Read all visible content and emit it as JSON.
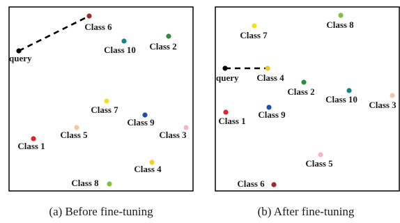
{
  "chart_data": [
    {
      "type": "scatter",
      "caption": "(a) Before fine-tuning",
      "query_label": "query",
      "points": [
        {
          "label": "Class 1",
          "color": "#e8202a"
        },
        {
          "label": "Class 2",
          "color": "#2f8c3a"
        },
        {
          "label": "Class 3",
          "color": "#f4b7c2"
        },
        {
          "label": "Class 4",
          "color": "#f2d21f"
        },
        {
          "label": "Class 5",
          "color": "#f4c4a6"
        },
        {
          "label": "Class 6",
          "color": "#9a2c2c"
        },
        {
          "label": "Class 7",
          "color": "#f2e11f"
        },
        {
          "label": "Class 8",
          "color": "#7cc242"
        },
        {
          "label": "Class 9",
          "color": "#1f4ea8"
        },
        {
          "label": "Class 10",
          "color": "#128585"
        }
      ],
      "nearest_link": [
        "query",
        "Class 6"
      ]
    },
    {
      "type": "scatter",
      "caption": "(b) After fine-tuning",
      "query_label": "query",
      "points": [
        {
          "label": "Class 1",
          "color": "#e8202a"
        },
        {
          "label": "Class 2",
          "color": "#2f8c3a"
        },
        {
          "label": "Class 3",
          "color": "#f4c4a6"
        },
        {
          "label": "Class 4",
          "color": "#f2c71f"
        },
        {
          "label": "Class 5",
          "color": "#f4b7c2"
        },
        {
          "label": "Class 6",
          "color": "#9a2c2c"
        },
        {
          "label": "Class 7",
          "color": "#f2e11f"
        },
        {
          "label": "Class 8",
          "color": "#7cc242"
        },
        {
          "label": "Class 9",
          "color": "#1f4ea8"
        },
        {
          "label": "Class 10",
          "color": "#128585"
        }
      ],
      "nearest_link": [
        "query",
        "Class 4"
      ]
    }
  ]
}
